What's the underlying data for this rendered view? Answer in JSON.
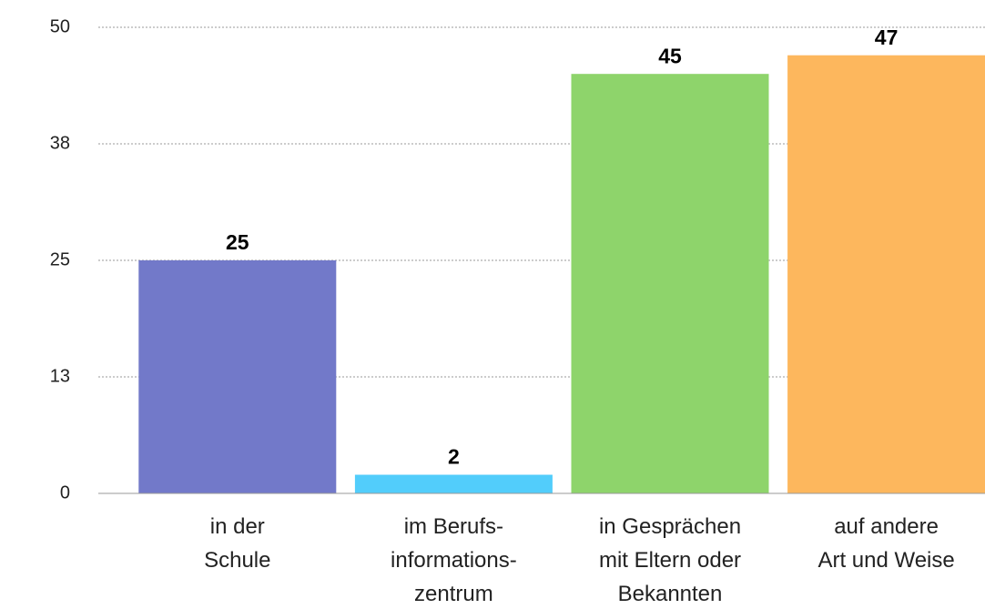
{
  "chart_data": {
    "type": "bar",
    "categories": [
      "in der\nSchule",
      "im Berufs-\ninformations-\nzentrum",
      "in Gesprächen\nmit Eltern oder\nBekannten",
      "auf andere\nArt und Weise"
    ],
    "values": [
      25,
      2,
      45,
      47
    ],
    "colors": [
      "#7279c9",
      "#52cdfb",
      "#8ed46b",
      "#fdb75d"
    ],
    "ylim": [
      0,
      50
    ],
    "yticks": [
      0,
      {
        "value": 12.5,
        "label": "13"
      },
      25,
      {
        "value": 37.5,
        "label": "38"
      },
      50
    ],
    "grid": true
  }
}
